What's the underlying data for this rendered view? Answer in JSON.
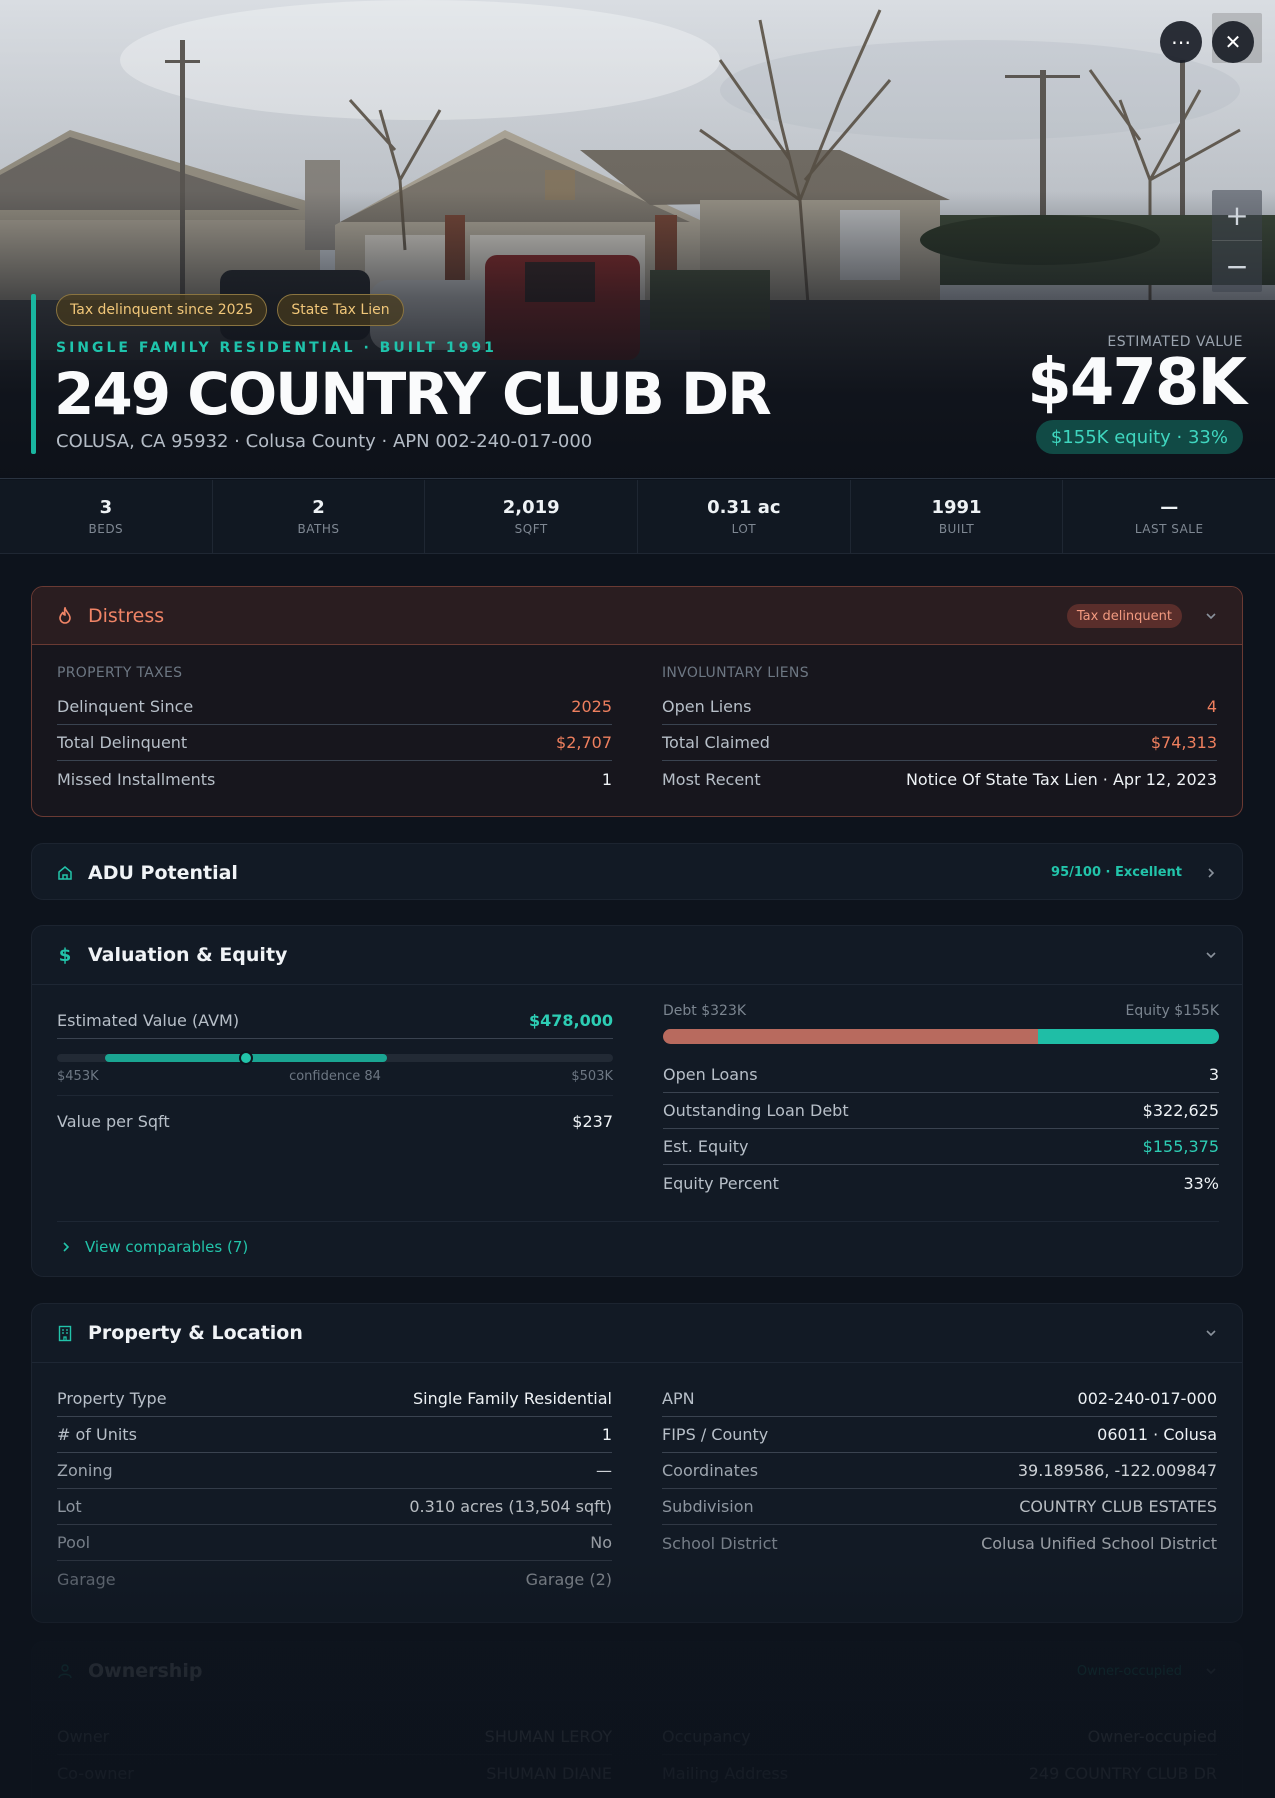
{
  "hero": {
    "chips": [
      "Tax delinquent since 2025",
      "State Tax Lien"
    ],
    "eyebrow": "SINGLE FAMILY RESIDENTIAL · BUILT 1991",
    "address": "249 COUNTRY CLUB DR",
    "subaddress": "COLUSA, CA 95932 · Colusa County · APN 002-240-017-000",
    "estimated_label": "ESTIMATED VALUE",
    "estimated_value": "$478K",
    "equity_pill": "$155K equity · 33%",
    "icons": {
      "more": "more-horizontal-icon",
      "close": "close-icon",
      "zoom_in": "plus-icon",
      "zoom_out": "minus-icon"
    }
  },
  "stats": [
    {
      "value": "3",
      "label": "BEDS"
    },
    {
      "value": "2",
      "label": "BATHS"
    },
    {
      "value": "2,019",
      "label": "SQFT"
    },
    {
      "value": "0.31 ac",
      "label": "LOT"
    },
    {
      "value": "1991",
      "label": "BUILT"
    },
    {
      "value": "—",
      "label": "LAST SALE"
    }
  ],
  "distress": {
    "title": "Distress",
    "badge": "Tax delinquent",
    "taxes": {
      "label": "PROPERTY TAXES",
      "rows": [
        {
          "k": "Delinquent Since",
          "v": "2025"
        },
        {
          "k": "Total Delinquent",
          "v": "$2,707"
        },
        {
          "k": "Missed Installments",
          "v": "1"
        }
      ]
    },
    "liens": {
      "label": "INVOLUNTARY LIENS",
      "rows": [
        {
          "k": "Open Liens",
          "v": "4"
        },
        {
          "k": "Total Claimed",
          "v": "$74,313"
        },
        {
          "k": "Most Recent",
          "v": "Notice Of State Tax Lien · Apr 12, 2023"
        }
      ]
    }
  },
  "adu": {
    "title": "ADU Potential",
    "score": "95/100 · Excellent",
    "score_value": 95
  },
  "valuation": {
    "title": "Valuation & Equity",
    "avm_label": "Estimated Value (AVM)",
    "avm_value": "$478,000",
    "avm_low": "$453K",
    "avm_high": "$503K",
    "confidence": "confidence 84",
    "range": {
      "low": 453,
      "high": 503,
      "value": 478
    },
    "value_per_sqft_label": "Value per Sqft",
    "value_per_sqft": "$237",
    "debt_label": "Debt $323K",
    "equity_label": "Equity $155K",
    "debt_fraction": 0.675,
    "rows": [
      {
        "k": "Open Loans",
        "v": "3"
      },
      {
        "k": "Outstanding Loan Debt",
        "v": "$322,625"
      },
      {
        "k": "Est. Equity",
        "v": "$155,375"
      },
      {
        "k": "Equity Percent",
        "v": "33%"
      }
    ],
    "comparables": "View comparables (7)"
  },
  "property": {
    "title": "Property & Location",
    "left": [
      {
        "k": "Property Type",
        "v": "Single Family Residential"
      },
      {
        "k": "# of Units",
        "v": "1"
      },
      {
        "k": "Zoning",
        "v": "—"
      },
      {
        "k": "Lot",
        "v": "0.310 acres (13,504 sqft)"
      },
      {
        "k": "Pool",
        "v": "No"
      },
      {
        "k": "Garage",
        "v": "Garage (2)"
      }
    ],
    "right": [
      {
        "k": "APN",
        "v": "002-240-017-000"
      },
      {
        "k": "FIPS / County",
        "v": "06011 · Colusa"
      },
      {
        "k": "Coordinates",
        "v": "39.189586, -122.009847"
      },
      {
        "k": "Subdivision",
        "v": "COUNTRY CLUB ESTATES"
      },
      {
        "k": "School District",
        "v": "Colusa Unified School District"
      }
    ]
  },
  "ownership": {
    "title": "Ownership",
    "badge": "Owner-occupied",
    "left": [
      {
        "k": "Owner",
        "v": "SHUMAN LEROY"
      },
      {
        "k": "Co-owner",
        "v": "SHUMAN DIANE"
      }
    ],
    "right": [
      {
        "k": "Occupancy",
        "v": "Owner-occupied"
      },
      {
        "k": "Mailing Address",
        "v": "249 COUNTRY CLUB DR"
      }
    ]
  },
  "colors": {
    "accent": "#19b6a0",
    "distress": "#f08466",
    "debt": "#b86a5e",
    "equity": "#1fbea6"
  }
}
